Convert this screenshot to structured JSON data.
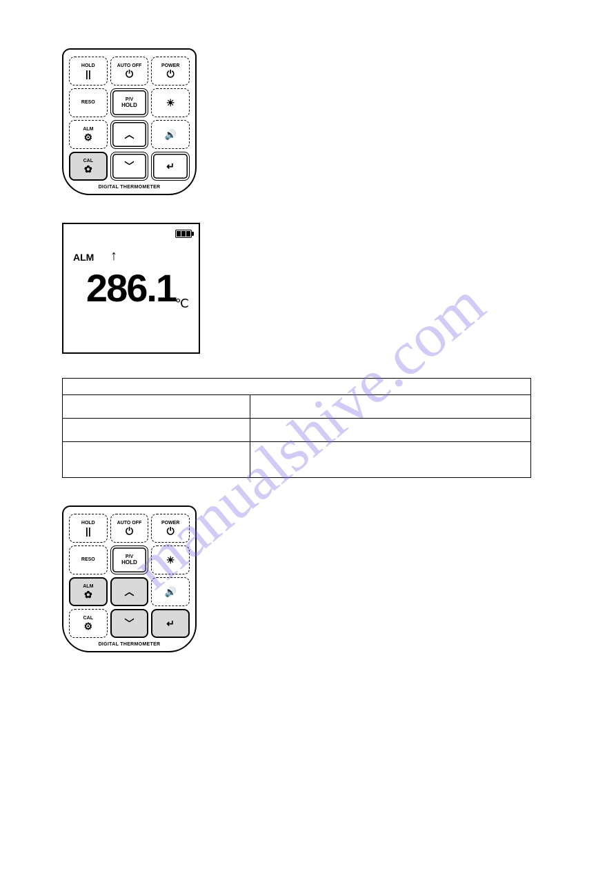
{
  "watermark": "manualshive.com",
  "keypad1": {
    "footer": "DIGITAL THERMOMETER",
    "keys": [
      {
        "top": "HOLD",
        "icon": "||",
        "style": "dashed"
      },
      {
        "top": "AUTO OFF",
        "icon": "⏻",
        "style": "dashed"
      },
      {
        "top": "POWER",
        "icon": "⏻",
        "style": "dashed"
      },
      {
        "top": "RESO",
        "icon": "",
        "style": "dashed"
      },
      {
        "top": "P/V",
        "icon": "HOLD",
        "style": "double"
      },
      {
        "top": "",
        "icon": "☀",
        "style": "dashed"
      },
      {
        "top": "ALM",
        "icon": "⚙",
        "style": "dashed"
      },
      {
        "top": "",
        "icon": "︿",
        "style": "double"
      },
      {
        "top": "",
        "icon": "🔊",
        "style": "dashed"
      },
      {
        "top": "CAL",
        "icon": "✿",
        "style": "solid"
      },
      {
        "top": "",
        "icon": "﹀",
        "style": "double"
      },
      {
        "top": "",
        "icon": "↵",
        "style": "double"
      }
    ]
  },
  "lcd": {
    "alm": "ALM",
    "reading": "286.1",
    "unit": "℃"
  },
  "table": {
    "cols": 2,
    "rows": [
      {
        "height": "header",
        "cells": [
          "",
          ""
        ]
      },
      {
        "height": "normal",
        "cells": [
          "",
          ""
        ]
      },
      {
        "height": "normal",
        "cells": [
          "",
          ""
        ]
      },
      {
        "height": "tall",
        "cells": [
          "",
          ""
        ]
      }
    ]
  },
  "keypad2": {
    "footer": "DIGITAL THERMOMETER",
    "keys": [
      {
        "top": "HOLD",
        "icon": "||",
        "style": "dashed"
      },
      {
        "top": "AUTO OFF",
        "icon": "⏻",
        "style": "dashed"
      },
      {
        "top": "POWER",
        "icon": "⏻",
        "style": "dashed"
      },
      {
        "top": "RESO",
        "icon": "",
        "style": "dashed"
      },
      {
        "top": "P/V",
        "icon": "HOLD",
        "style": "double"
      },
      {
        "top": "",
        "icon": "☀",
        "style": "dashed"
      },
      {
        "top": "ALM",
        "icon": "✿",
        "style": "solid"
      },
      {
        "top": "",
        "icon": "︿",
        "style": "solid"
      },
      {
        "top": "",
        "icon": "🔊",
        "style": "dashed"
      },
      {
        "top": "CAL",
        "icon": "⚙",
        "style": "dashed"
      },
      {
        "top": "",
        "icon": "﹀",
        "style": "solid"
      },
      {
        "top": "",
        "icon": "↵",
        "style": "solid"
      }
    ]
  }
}
